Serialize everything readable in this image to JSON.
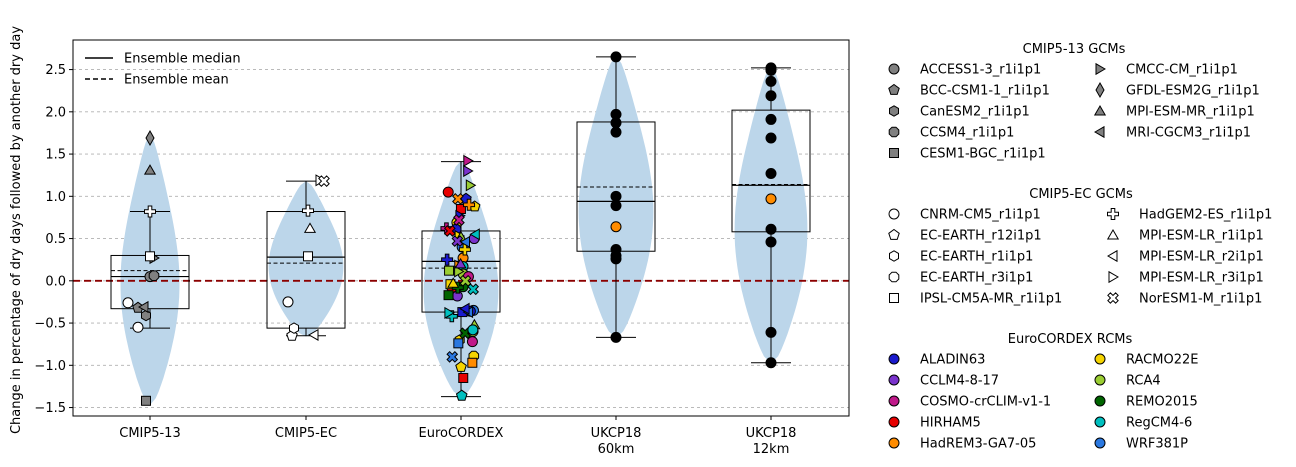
{
  "chart_data": {
    "type": "box-violin",
    "ylabel": "Change in percentage of dry days followed by another dry day",
    "ylim": [
      -1.6,
      2.85
    ],
    "yticks": [
      -1.5,
      -1.0,
      -0.5,
      0.0,
      0.5,
      1.0,
      1.5,
      2.0,
      2.5
    ],
    "ytick_labels": [
      "−1.5",
      "−1.0",
      "−0.5",
      "0.0",
      "0.5",
      "1.0",
      "1.5",
      "2.0",
      "2.5"
    ],
    "grid": "horizontal dashed",
    "zero_line_color": "#8b0000",
    "violin_color": "#bcd6ea",
    "main_legend": [
      {
        "label": "Ensemble median",
        "style": "solid"
      },
      {
        "label": "Ensemble mean",
        "style": "dashed"
      }
    ],
    "groups": [
      {
        "label": "CMIP5-13",
        "violin": [
          -1.47,
          1.72
        ],
        "box": {
          "q1": -0.33,
          "median": 0.05,
          "q3": 0.3,
          "mean": 0.12,
          "whisker_low": -0.56,
          "whisker_high": 0.82
        },
        "points": [
          {
            "y": 0.05,
            "m": "circle",
            "c": "#808080"
          },
          {
            "y": -0.32,
            "m": "pentagon",
            "c": "#808080"
          },
          {
            "y": -0.41,
            "m": "hexagon",
            "c": "#808080"
          },
          {
            "y": 0.06,
            "m": "octagon",
            "c": "#808080"
          },
          {
            "y": -1.42,
            "m": "square",
            "c": "#808080"
          },
          {
            "y": 0.27,
            "m": "tri-right",
            "c": "#808080"
          },
          {
            "y": 1.69,
            "m": "thin-diamond",
            "c": "#808080"
          },
          {
            "y": 1.31,
            "m": "tri-up",
            "c": "#808080"
          },
          {
            "y": -0.31,
            "m": "tri-left",
            "c": "#808080"
          },
          {
            "y": -0.55,
            "m": "circle",
            "c": "#ffffff"
          },
          {
            "y": -0.26,
            "m": "circle",
            "c": "#ffffff"
          },
          {
            "y": 0.82,
            "m": "plus",
            "c": "#ffffff"
          },
          {
            "y": 0.29,
            "m": "square",
            "c": "#ffffff"
          }
        ]
      },
      {
        "label": "CMIP5-EC",
        "violin": [
          -0.66,
          1.18
        ],
        "box": {
          "q1": -0.56,
          "median": 0.28,
          "q3": 0.82,
          "mean": 0.21,
          "whisker_low": -0.65,
          "whisker_high": 1.18
        },
        "points": [
          {
            "y": -0.25,
            "m": "circle",
            "c": "#ffffff"
          },
          {
            "y": -0.65,
            "m": "pentagon",
            "c": "#ffffff"
          },
          {
            "y": -0.56,
            "m": "hexagon",
            "c": "#ffffff"
          },
          {
            "y": 0.29,
            "m": "square",
            "c": "#ffffff"
          },
          {
            "y": 0.83,
            "m": "plus",
            "c": "#ffffff"
          },
          {
            "y": 0.62,
            "m": "tri-up",
            "c": "#ffffff"
          },
          {
            "y": -0.64,
            "m": "tri-left",
            "c": "#ffffff"
          },
          {
            "y": 1.19,
            "m": "tri-right",
            "c": "#ffffff"
          },
          {
            "y": 1.18,
            "m": "x",
            "c": "#ffffff"
          }
        ]
      },
      {
        "label": "EuroCORDEX",
        "violin": [
          -1.38,
          1.42
        ],
        "box": {
          "q1": -0.37,
          "median": 0.23,
          "q3": 0.59,
          "mean": 0.15,
          "whisker_low": -1.37,
          "whisker_high": 1.41
        },
        "points": [
          {
            "y": 1.05,
            "m": "circle",
            "c": "#e60000"
          },
          {
            "y": 0.69,
            "m": "circle",
            "c": "#f5d400"
          },
          {
            "y": 0.61,
            "m": "circle",
            "c": "#1a1acc"
          },
          {
            "y": 0.5,
            "m": "circle",
            "c": "#7a33cc"
          },
          {
            "y": 0.4,
            "m": "circle",
            "c": "#2a78e0"
          },
          {
            "y": 0.27,
            "m": "circle",
            "c": "#ff8c00"
          },
          {
            "y": 0.17,
            "m": "circle",
            "c": "#00bfbf"
          },
          {
            "y": 0.08,
            "m": "circle",
            "c": "#9acd32"
          },
          {
            "y": -0.07,
            "m": "circle",
            "c": "#006400"
          },
          {
            "y": -0.18,
            "m": "circle",
            "c": "#7a33cc"
          },
          {
            "y": -0.35,
            "m": "circle",
            "c": "#2a78e0"
          },
          {
            "y": -0.36,
            "m": "circle",
            "c": "#1a1acc"
          },
          {
            "y": -0.08,
            "m": "circle",
            "c": "#e60000"
          },
          {
            "y": 0.05,
            "m": "circle",
            "c": "#c0198a"
          },
          {
            "y": 0.97,
            "m": "pentagon",
            "c": "#1a1acc"
          },
          {
            "y": 0.88,
            "m": "pentagon",
            "c": "#f5d400"
          },
          {
            "y": -0.7,
            "m": "hexagon",
            "c": "#f5d400"
          },
          {
            "y": -0.89,
            "m": "octagon",
            "c": "#f5d400"
          },
          {
            "y": -1.02,
            "m": "pentagon",
            "c": "#f5d400"
          },
          {
            "y": -1.36,
            "m": "pentagon",
            "c": "#00bfbf"
          },
          {
            "y": 0.85,
            "m": "square",
            "c": "#e60000"
          },
          {
            "y": 0.12,
            "m": "square",
            "c": "#9acd32"
          },
          {
            "y": -0.17,
            "m": "square",
            "c": "#006400"
          },
          {
            "y": -0.74,
            "m": "square",
            "c": "#2a78e0"
          },
          {
            "y": -0.97,
            "m": "square",
            "c": "#ff8c00"
          },
          {
            "y": -1.15,
            "m": "square",
            "c": "#e60000"
          },
          {
            "y": -0.04,
            "m": "square",
            "c": "#f5d400"
          },
          {
            "y": -0.37,
            "m": "square",
            "c": "#1a1acc"
          },
          {
            "y": 0.9,
            "m": "plus",
            "c": "#ff8c00"
          },
          {
            "y": 0.62,
            "m": "plus",
            "c": "#c0198a"
          },
          {
            "y": 0.37,
            "m": "plus",
            "c": "#f5d400"
          },
          {
            "y": 0.25,
            "m": "plus",
            "c": "#1a1acc"
          },
          {
            "y": -0.08,
            "m": "plus",
            "c": "#006400"
          },
          {
            "y": -0.42,
            "m": "plus",
            "c": "#00bfbf"
          },
          {
            "y": 1.42,
            "m": "tri-right",
            "c": "#c0198a"
          },
          {
            "y": 1.3,
            "m": "tri-right",
            "c": "#7a33cc"
          },
          {
            "y": 1.13,
            "m": "tri-right",
            "c": "#9acd32"
          },
          {
            "y": 0.77,
            "m": "tri-right",
            "c": "#1a1acc"
          },
          {
            "y": 0.53,
            "m": "tri-right",
            "c": "#f5d400"
          },
          {
            "y": 0.18,
            "m": "tri-right",
            "c": "#ff8c00"
          },
          {
            "y": 0.11,
            "m": "tri-right",
            "c": "#9acd32"
          },
          {
            "y": -0.38,
            "m": "tri-right",
            "c": "#00bfbf"
          },
          {
            "y": 0.52,
            "m": "tri-up",
            "c": "#9acd32"
          },
          {
            "y": 0.2,
            "m": "tri-up",
            "c": "#7a33cc"
          },
          {
            "y": -0.52,
            "m": "tri-up",
            "c": "#9acd32"
          },
          {
            "y": -0.03,
            "m": "tri-up",
            "c": "#f5d400"
          },
          {
            "y": 0.55,
            "m": "tri-left",
            "c": "#00bfbf"
          },
          {
            "y": 0.46,
            "m": "tri-left",
            "c": "#2a78e0"
          },
          {
            "y": -0.37,
            "m": "tri-left",
            "c": "#2a78e0"
          },
          {
            "y": -0.33,
            "m": "tri-left",
            "c": "#1a1acc"
          },
          {
            "y": 0.97,
            "m": "x",
            "c": "#ff8c00"
          },
          {
            "y": 0.72,
            "m": "x",
            "c": "#c0198a"
          },
          {
            "y": 0.59,
            "m": "x",
            "c": "#e60000"
          },
          {
            "y": 0.47,
            "m": "x",
            "c": "#7a33cc"
          },
          {
            "y": 0.0,
            "m": "x",
            "c": "#9acd32"
          },
          {
            "y": -0.1,
            "m": "x",
            "c": "#00bfbf"
          },
          {
            "y": -0.62,
            "m": "x",
            "c": "#006400"
          },
          {
            "y": -0.9,
            "m": "x",
            "c": "#2a78e0"
          },
          {
            "y": -0.6,
            "m": "circle",
            "c": "#9acd32"
          },
          {
            "y": -0.58,
            "m": "circle",
            "c": "#00bfbf"
          },
          {
            "y": -0.72,
            "m": "circle",
            "c": "#c0198a"
          }
        ]
      },
      {
        "label": "UKCP18\n60km",
        "violin": [
          -0.68,
          2.66
        ],
        "box": {
          "q1": 0.35,
          "median": 0.94,
          "q3": 1.88,
          "mean": 1.11,
          "whisker_low": -0.67,
          "whisker_high": 2.65
        },
        "points": [
          {
            "y": 2.65,
            "m": "circle",
            "c": "#000000"
          },
          {
            "y": 1.97,
            "m": "circle",
            "c": "#000000"
          },
          {
            "y": 1.87,
            "m": "circle",
            "c": "#000000"
          },
          {
            "y": 1.76,
            "m": "circle",
            "c": "#000000"
          },
          {
            "y": 1.0,
            "m": "circle",
            "c": "#000000"
          },
          {
            "y": 0.89,
            "m": "circle",
            "c": "#000000"
          },
          {
            "y": 0.64,
            "m": "circle",
            "c": "#ff8c00"
          },
          {
            "y": 0.37,
            "m": "circle",
            "c": "#000000"
          },
          {
            "y": 0.3,
            "m": "circle",
            "c": "#000000"
          },
          {
            "y": 0.26,
            "m": "circle",
            "c": "#000000"
          },
          {
            "y": -0.67,
            "m": "circle",
            "c": "#000000"
          }
        ]
      },
      {
        "label": "UKCP18\n12km",
        "violin": [
          -0.98,
          2.53
        ],
        "box": {
          "q1": 0.58,
          "median": 1.13,
          "q3": 2.02,
          "mean": 1.14,
          "whisker_low": -0.97,
          "whisker_high": 2.52
        },
        "points": [
          {
            "y": 2.52,
            "m": "circle",
            "c": "#000000"
          },
          {
            "y": 2.49,
            "m": "circle",
            "c": "#000000"
          },
          {
            "y": 2.36,
            "m": "circle",
            "c": "#000000"
          },
          {
            "y": 2.19,
            "m": "circle",
            "c": "#000000"
          },
          {
            "y": 1.91,
            "m": "circle",
            "c": "#000000"
          },
          {
            "y": 1.69,
            "m": "circle",
            "c": "#000000"
          },
          {
            "y": 1.27,
            "m": "circle",
            "c": "#000000"
          },
          {
            "y": 0.97,
            "m": "circle",
            "c": "#ff8c00"
          },
          {
            "y": 0.61,
            "m": "circle",
            "c": "#000000"
          },
          {
            "y": 0.46,
            "m": "circle",
            "c": "#000000"
          },
          {
            "y": -0.61,
            "m": "circle",
            "c": "#000000"
          },
          {
            "y": -0.97,
            "m": "circle",
            "c": "#000000"
          }
        ]
      }
    ],
    "legends": [
      {
        "title": "CMIP5-13 GCMs",
        "columns": 2,
        "items": [
          {
            "label": "ACCESS1-3_r1i1p1",
            "m": "circle",
            "c": "#808080"
          },
          {
            "label": "BCC-CSM1-1_r1i1p1",
            "m": "pentagon",
            "c": "#808080"
          },
          {
            "label": "CanESM2_r1i1p1",
            "m": "hexagon",
            "c": "#808080"
          },
          {
            "label": "CCSM4_r1i1p1",
            "m": "octagon",
            "c": "#808080"
          },
          {
            "label": "CESM1-BGC_r1i1p1",
            "m": "square",
            "c": "#808080"
          },
          {
            "label": "CMCC-CM_r1i1p1",
            "m": "tri-right",
            "c": "#808080"
          },
          {
            "label": "GFDL-ESM2G_r1i1p1",
            "m": "thin-diamond",
            "c": "#808080"
          },
          {
            "label": "MPI-ESM-MR_r1i1p1",
            "m": "tri-up",
            "c": "#808080"
          },
          {
            "label": "MRI-CGCM3_r1i1p1",
            "m": "tri-left",
            "c": "#808080"
          }
        ]
      },
      {
        "title": "CMIP5-EC GCMs",
        "columns": 2,
        "items": [
          {
            "label": "CNRM-CM5_r1i1p1",
            "m": "circle",
            "c": "#ffffff"
          },
          {
            "label": "EC-EARTH_r12i1p1",
            "m": "pentagon",
            "c": "#ffffff"
          },
          {
            "label": "EC-EARTH_r1i1p1",
            "m": "hexagon",
            "c": "#ffffff"
          },
          {
            "label": "EC-EARTH_r3i1p1",
            "m": "octagon",
            "c": "#ffffff"
          },
          {
            "label": "IPSL-CM5A-MR_r1i1p1",
            "m": "square",
            "c": "#ffffff"
          },
          {
            "label": "HadGEM2-ES_r1i1p1",
            "m": "plus",
            "c": "#ffffff"
          },
          {
            "label": "MPI-ESM-LR_r1i1p1",
            "m": "tri-up",
            "c": "#ffffff"
          },
          {
            "label": "MPI-ESM-LR_r2i1p1",
            "m": "tri-left",
            "c": "#ffffff"
          },
          {
            "label": "MPI-ESM-LR_r3i1p1",
            "m": "tri-right",
            "c": "#ffffff"
          },
          {
            "label": "NorESM1-M_r1i1p1",
            "m": "x",
            "c": "#ffffff"
          }
        ]
      },
      {
        "title": "EuroCORDEX RCMs",
        "columns": 2,
        "items": [
          {
            "label": "ALADIN63",
            "m": "circle",
            "c": "#1a1acc"
          },
          {
            "label": "CCLM4-8-17",
            "m": "circle",
            "c": "#7a33cc"
          },
          {
            "label": "COSMO-crCLIM-v1-1",
            "m": "circle",
            "c": "#c0198a"
          },
          {
            "label": "HIRHAM5",
            "m": "circle",
            "c": "#e60000"
          },
          {
            "label": "HadREM3-GA7-05",
            "m": "circle",
            "c": "#ff8c00"
          },
          {
            "label": "RACMO22E",
            "m": "circle",
            "c": "#f5d400"
          },
          {
            "label": "RCA4",
            "m": "circle",
            "c": "#9acd32"
          },
          {
            "label": "REMO2015",
            "m": "circle",
            "c": "#006400"
          },
          {
            "label": "RegCM4-6",
            "m": "circle",
            "c": "#00bfbf"
          },
          {
            "label": "WRF381P",
            "m": "circle",
            "c": "#2a78e0"
          }
        ]
      }
    ]
  }
}
